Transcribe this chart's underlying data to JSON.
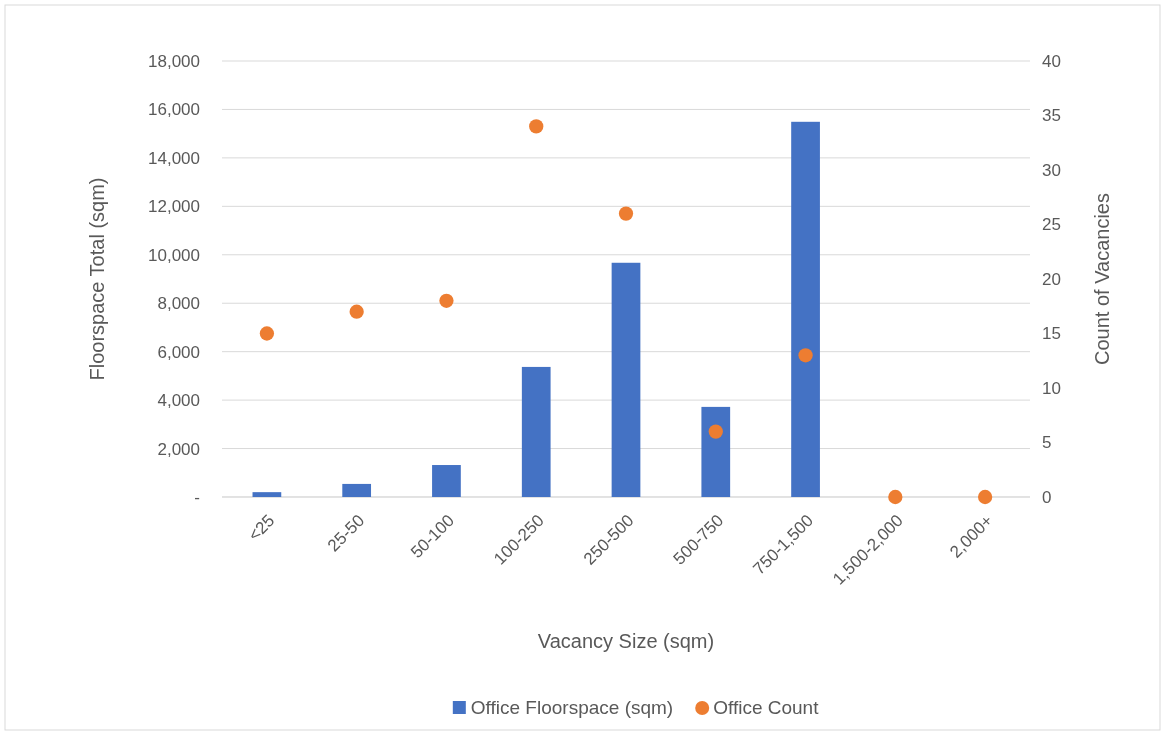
{
  "chart_data": {
    "type": "bar",
    "xlabel": "Vacancy Size (sqm)",
    "ylabel": "Floorspace Total (sqm)",
    "y2label": "Count of Vacancies",
    "categories": [
      "<25",
      "25-50",
      "50-100",
      "100-250",
      "250-500",
      "500-750",
      "750-1,500",
      "1,500-2,000",
      "2,000+"
    ],
    "series": [
      {
        "name": "Office Floorspace (sqm)",
        "color": "#4472c4",
        "values": [
          200,
          540,
          1320,
          5370,
          9670,
          3720,
          15490,
          0,
          0
        ]
      },
      {
        "name": "Office Count",
        "type": "scatter",
        "axis": "y2",
        "color": "#ed7d31",
        "values": [
          15,
          17,
          18,
          34,
          26,
          6,
          13,
          0,
          0
        ]
      }
    ],
    "ylim": [
      0,
      18000
    ],
    "yticks": [
      {
        "value": 0,
        "label": "-"
      },
      {
        "value": 2000,
        "label": "2,000"
      },
      {
        "value": 4000,
        "label": "4,000"
      },
      {
        "value": 6000,
        "label": "6,000"
      },
      {
        "value": 8000,
        "label": "8,000"
      },
      {
        "value": 10000,
        "label": "10,000"
      },
      {
        "value": 12000,
        "label": "12,000"
      },
      {
        "value": 14000,
        "label": "14,000"
      },
      {
        "value": 16000,
        "label": "16,000"
      },
      {
        "value": 18000,
        "label": "18,000"
      }
    ],
    "y2lim": [
      0,
      40
    ],
    "y2ticks": [
      0,
      5,
      10,
      15,
      20,
      25,
      30,
      35,
      40
    ],
    "grid": "y",
    "legend": "bottom",
    "marker": "circle"
  }
}
